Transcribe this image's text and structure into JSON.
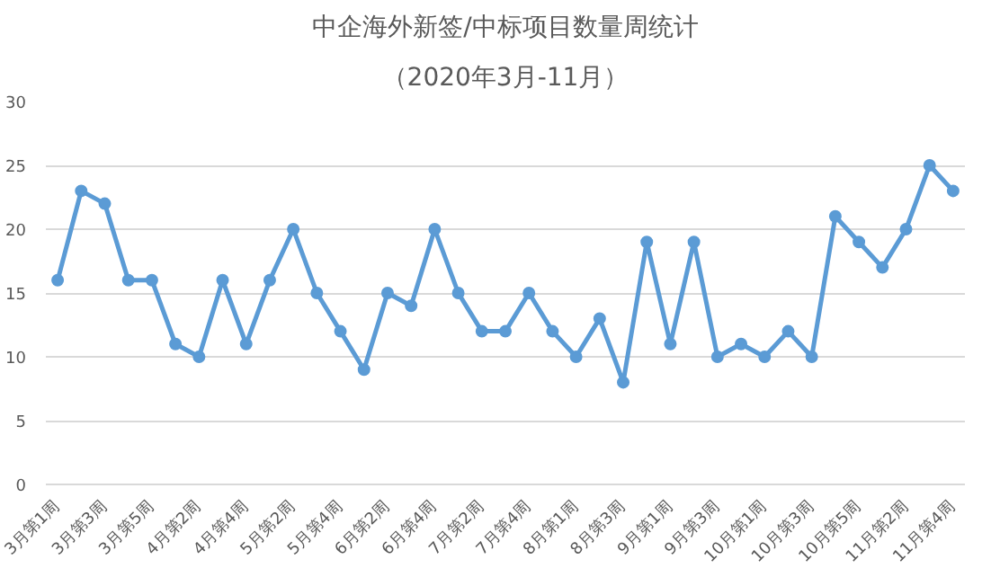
{
  "chart_data": {
    "type": "line",
    "title": "中企海外新签/中标项目数量周统计",
    "subtitle": "（2020年3月-11月）",
    "categories": [
      "3月第1周",
      null,
      "3月第3周",
      null,
      "3月第5周",
      null,
      "4月第2周",
      null,
      "4月第4周",
      null,
      "5月第2周",
      null,
      "5月第4周",
      null,
      "6月第2周",
      null,
      "6月第4周",
      null,
      "7月第2周",
      null,
      "7月第4周",
      null,
      "8月第1周",
      null,
      "8月第3周",
      null,
      "9月第1周",
      null,
      "9月第3周",
      null,
      "10月第1周",
      null,
      "10月第3周",
      null,
      "10月第5周",
      null,
      "11月第2周",
      null,
      "11月第4周"
    ],
    "series": [
      {
        "color": "#5b9bd5",
        "values": [
          16,
          23,
          22,
          16,
          16,
          11,
          10,
          16,
          11,
          16,
          20,
          15,
          12,
          9,
          15,
          14,
          20,
          15,
          12,
          12,
          15,
          12,
          10,
          13,
          8,
          19,
          11,
          19,
          10,
          11,
          10,
          12,
          10,
          21,
          19,
          17,
          20,
          25,
          23
        ]
      }
    ],
    "ylim": [
      0,
      30
    ],
    "yticks": [
      0,
      5,
      10,
      15,
      20,
      25,
      30
    ],
    "grid": "y",
    "marker": "circle",
    "line_style": "solid"
  }
}
